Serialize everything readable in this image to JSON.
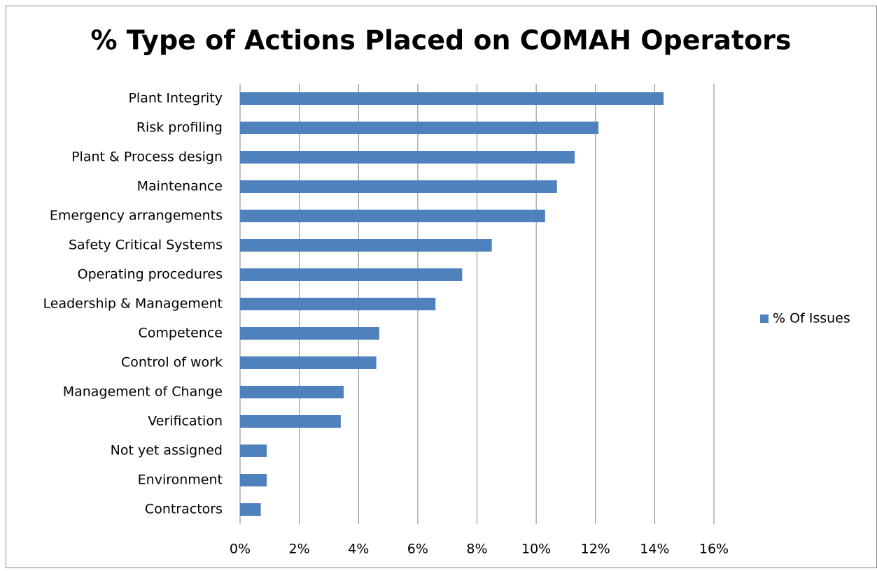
{
  "chart_data": {
    "type": "hbar",
    "title": "% Type of Actions Placed on COMAH Operators",
    "categories": [
      "Plant Integrity",
      "Risk profiling",
      "Plant & Process design",
      "Maintenance",
      "Emergency arrangements",
      "Safety Critical Systems",
      "Operating procedures",
      "Leadership & Management",
      "Competence",
      "Control of work",
      "Management of Change",
      "Verification",
      "Not yet assigned",
      "Environment",
      "Contractors"
    ],
    "series": [
      {
        "name": "% Of Issues",
        "color": "#4f81bd",
        "values": [
          14.3,
          12.1,
          11.3,
          10.7,
          10.3,
          8.5,
          7.5,
          6.6,
          4.7,
          4.6,
          3.5,
          3.4,
          0.9,
          0.9,
          0.7
        ]
      }
    ],
    "xlim": [
      0,
      16
    ],
    "xticks": [
      {
        "value": 0,
        "label": "0%"
      },
      {
        "value": 2,
        "label": "2%"
      },
      {
        "value": 4,
        "label": "4%"
      },
      {
        "value": 6,
        "label": "6%"
      },
      {
        "value": 8,
        "label": "8%"
      },
      {
        "value": 10,
        "label": "10%"
      },
      {
        "value": 12,
        "label": "12%"
      },
      {
        "value": 14,
        "label": "14%"
      },
      {
        "value": 16,
        "label": "16%"
      }
    ],
    "grid": true,
    "legend": "right"
  }
}
